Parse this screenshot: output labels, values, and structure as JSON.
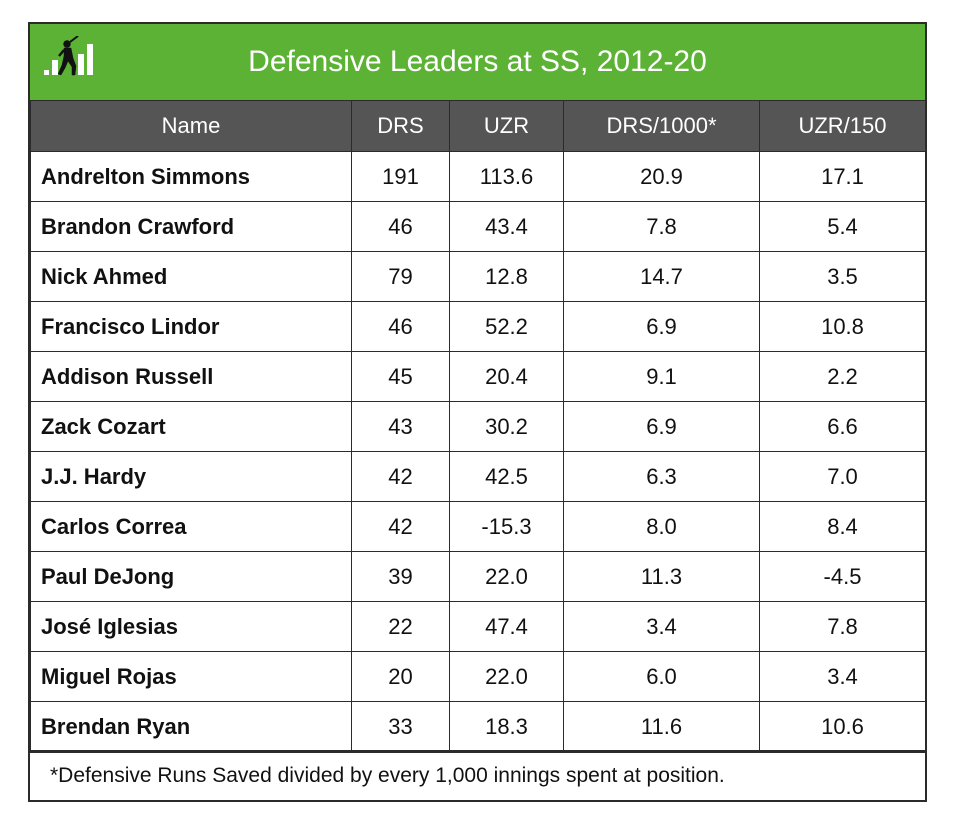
{
  "chart_data": {
    "type": "table",
    "title": "Defensive Leaders at SS, 2012-20",
    "columns": [
      "Name",
      "DRS",
      "UZR",
      "DRS/1000*",
      "UZR/150"
    ],
    "rows": [
      [
        "Andrelton Simmons",
        "191",
        "113.6",
        "20.9",
        "17.1"
      ],
      [
        "Brandon Crawford",
        "46",
        "43.4",
        "7.8",
        "5.4"
      ],
      [
        "Nick Ahmed",
        "79",
        "12.8",
        "14.7",
        "3.5"
      ],
      [
        "Francisco Lindor",
        "46",
        "52.2",
        "6.9",
        "10.8"
      ],
      [
        "Addison Russell",
        "45",
        "20.4",
        "9.1",
        "2.2"
      ],
      [
        "Zack Cozart",
        "43",
        "30.2",
        "6.9",
        "6.6"
      ],
      [
        "J.J. Hardy",
        "42",
        "42.5",
        "6.3",
        "7.0"
      ],
      [
        "Carlos Correa",
        "42",
        "-15.3",
        "8.0",
        "8.4"
      ],
      [
        "Paul DeJong",
        "39",
        "22.0",
        "11.3",
        "-4.5"
      ],
      [
        "José Iglesias",
        "22",
        "47.4",
        "3.4",
        "7.8"
      ],
      [
        "Miguel Rojas",
        "20",
        "22.0",
        "6.0",
        "3.4"
      ],
      [
        "Brendan Ryan",
        "33",
        "18.3",
        "11.6",
        "10.6"
      ]
    ],
    "footnote": "*Defensive Runs Saved divided by every 1,000 innings spent at position."
  },
  "colors": {
    "banner": "#5cb234",
    "header": "#555555",
    "border": "#2b2b2b"
  },
  "logo": {
    "icon": "baseball-batter-bars-icon"
  }
}
